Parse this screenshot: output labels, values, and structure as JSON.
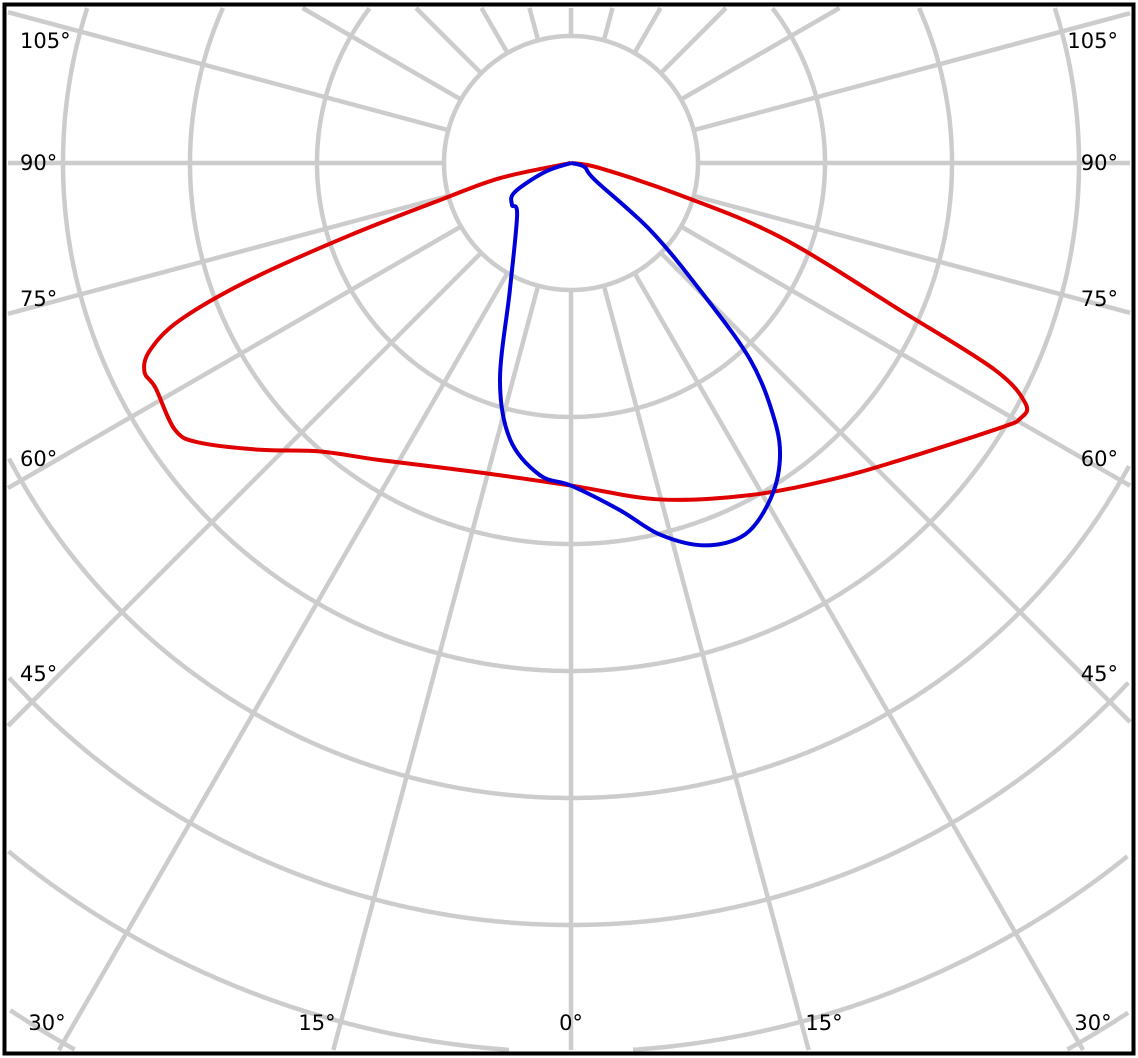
{
  "chart_data": {
    "type": "polar",
    "title": "",
    "angle_zero_direction": "down",
    "angle_unit": "degrees",
    "radial_scale_labels": "none printed",
    "grid": true,
    "ring_count": 8,
    "spoke_step_deg": 15,
    "angle_labels_left": [
      "105°",
      "90°",
      "75°",
      "60°",
      "45°"
    ],
    "angle_labels_right": [
      "105°",
      "90°",
      "75°",
      "60°",
      "45°"
    ],
    "angle_labels_bottom": [
      "30°",
      "15°",
      "0°",
      "15°",
      "30°"
    ],
    "colors": {
      "grid": "#cccccc",
      "red_series": "#e00000",
      "blue_series": "#0000d8",
      "frame": "#000000"
    },
    "series": [
      {
        "color": "#e00000",
        "points_angle_radius": [
          [
            -90,
            0
          ],
          [
            -78,
            0.57
          ],
          [
            -74.2,
            1.07
          ],
          [
            -71.9,
            1.83
          ],
          [
            -70,
            2.69
          ],
          [
            -68.1,
            3.32
          ],
          [
            -66,
            3.63
          ],
          [
            -63.9,
            3.74
          ],
          [
            -61.6,
            3.72
          ],
          [
            -56,
            3.76
          ],
          [
            -53,
            3.66
          ],
          [
            -47.3,
            3.33
          ],
          [
            -41,
            3.01
          ],
          [
            -32.7,
            2.78
          ],
          [
            -16.4,
            2.54
          ],
          [
            0,
            2.54
          ],
          [
            14.8,
            2.74
          ],
          [
            28.3,
            2.97
          ],
          [
            39.2,
            3.22
          ],
          [
            47.9,
            3.49
          ],
          [
            58.3,
            3.97
          ],
          [
            60.4,
            4.07
          ],
          [
            62.1,
            4.05
          ],
          [
            64,
            3.71
          ],
          [
            65.9,
            2.84
          ],
          [
            70.5,
            1.75
          ],
          [
            73.6,
            0.89
          ],
          [
            80,
            0.23
          ],
          [
            90,
            0
          ]
        ]
      },
      {
        "color": "#0000d8",
        "points_angle_radius": [
          [
            -90,
            0
          ],
          [
            -71,
            0.22
          ],
          [
            -62.6,
            0.5
          ],
          [
            -54.6,
            0.57
          ],
          [
            -46,
            0.59
          ],
          [
            -25.7,
            1.11
          ],
          [
            -18.1,
            1.8
          ],
          [
            -12.4,
            2.23
          ],
          [
            -5.7,
            2.47
          ],
          [
            0,
            2.54
          ],
          [
            8,
            2.76
          ],
          [
            13.5,
            3.01
          ],
          [
            19.3,
            3.19
          ],
          [
            25.1,
            3.23
          ],
          [
            30.6,
            3.08
          ],
          [
            35.1,
            2.86
          ],
          [
            38.4,
            2.58
          ],
          [
            42.3,
            2.1
          ],
          [
            45.4,
            1.43
          ],
          [
            49.7,
            0.82
          ],
          [
            54.7,
            0.23
          ],
          [
            74,
            0.11
          ],
          [
            90,
            0
          ]
        ]
      }
    ]
  }
}
